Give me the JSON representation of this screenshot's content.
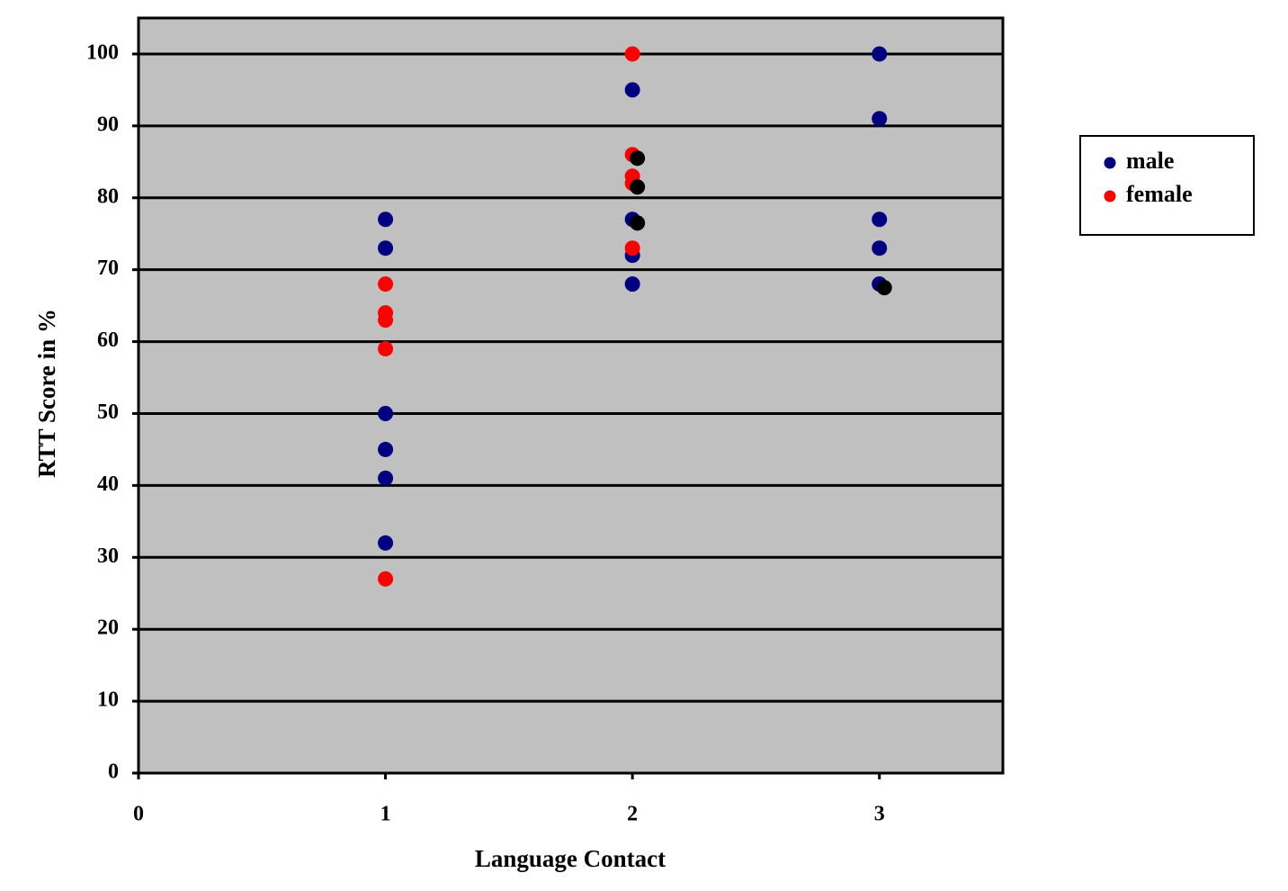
{
  "chart_data": {
    "type": "scatter",
    "x_label": "Language Contact",
    "y_label": "RTT Score in %",
    "xlim": [
      0,
      3.5
    ],
    "ylim": [
      0,
      105
    ],
    "xticks": [
      0,
      1,
      2,
      3
    ],
    "yticks": [
      0,
      10,
      20,
      30,
      40,
      50,
      60,
      70,
      80,
      90,
      100
    ],
    "grid": true,
    "legend": "right",
    "series": [
      {
        "name": "male",
        "color": "#000080",
        "x": [
          1,
          1,
          1,
          1,
          1,
          1,
          2,
          2,
          2,
          2,
          3,
          3,
          3,
          3,
          3
        ],
        "values": [
          77,
          73,
          50,
          45,
          41,
          32,
          95,
          77,
          72,
          68,
          100,
          91,
          77,
          73,
          68
        ]
      },
      {
        "name": "female",
        "color": "#ff0000",
        "x": [
          1,
          1,
          1,
          1,
          1,
          2,
          2,
          2,
          2,
          2
        ],
        "values": [
          68,
          64,
          63,
          59,
          27,
          100,
          86,
          83,
          82,
          73
        ]
      },
      {
        "color": "#000000",
        "x": [
          2.02,
          2.02,
          2.02,
          3.02
        ],
        "values": [
          85.5,
          81.5,
          76.5,
          67.5
        ]
      }
    ]
  }
}
